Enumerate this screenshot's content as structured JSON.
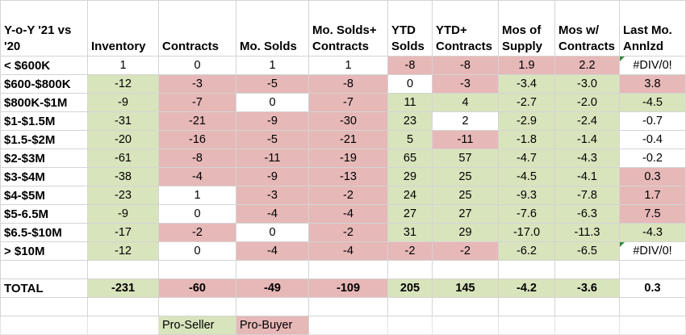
{
  "headers": [
    "Y-o-Y '21 vs '20",
    "Inventory",
    "Contracts",
    "Mo. Solds",
    "Mo. Solds+ Contracts",
    "YTD Solds",
    "YTD+ Contracts",
    "Mos of Supply",
    "Mos w/ Contracts",
    "Last Mo. Annlzd"
  ],
  "colors": {
    "pro_seller": "#d8e4bc",
    "pro_buyer": "#e6b8b7",
    "neutral": "#ffffff"
  },
  "rows": [
    {
      "label": "< $600K",
      "cells": [
        {
          "v": "1",
          "c": "white"
        },
        {
          "v": "0",
          "c": "white"
        },
        {
          "v": "1",
          "c": "white"
        },
        {
          "v": "1",
          "c": "white"
        },
        {
          "v": "-8",
          "c": "red"
        },
        {
          "v": "-8",
          "c": "red"
        },
        {
          "v": "1.9",
          "c": "red"
        },
        {
          "v": "2.2",
          "c": "red"
        },
        {
          "v": "#DIV/0!",
          "c": "white",
          "flag": true
        }
      ]
    },
    {
      "label": "$600-$800K",
      "cells": [
        {
          "v": "-12",
          "c": "green"
        },
        {
          "v": "-3",
          "c": "red"
        },
        {
          "v": "-5",
          "c": "red"
        },
        {
          "v": "-8",
          "c": "red"
        },
        {
          "v": "0",
          "c": "white"
        },
        {
          "v": "-3",
          "c": "red"
        },
        {
          "v": "-3.4",
          "c": "green"
        },
        {
          "v": "-3.0",
          "c": "green"
        },
        {
          "v": "3.8",
          "c": "red"
        }
      ]
    },
    {
      "label": "$800K-$1M",
      "cells": [
        {
          "v": "-9",
          "c": "green"
        },
        {
          "v": "-7",
          "c": "red"
        },
        {
          "v": "0",
          "c": "white"
        },
        {
          "v": "-7",
          "c": "red"
        },
        {
          "v": "11",
          "c": "green"
        },
        {
          "v": "4",
          "c": "green"
        },
        {
          "v": "-2.7",
          "c": "green"
        },
        {
          "v": "-2.0",
          "c": "green"
        },
        {
          "v": "-4.5",
          "c": "green"
        }
      ]
    },
    {
      "label": "$1-$1.5M",
      "cells": [
        {
          "v": "-31",
          "c": "green"
        },
        {
          "v": "-21",
          "c": "red"
        },
        {
          "v": "-9",
          "c": "red"
        },
        {
          "v": "-30",
          "c": "red"
        },
        {
          "v": "23",
          "c": "green"
        },
        {
          "v": "2",
          "c": "white"
        },
        {
          "v": "-2.9",
          "c": "green"
        },
        {
          "v": "-2.4",
          "c": "green"
        },
        {
          "v": "-0.7",
          "c": "white"
        }
      ]
    },
    {
      "label": "$1.5-$2M",
      "cells": [
        {
          "v": "-20",
          "c": "green"
        },
        {
          "v": "-16",
          "c": "red"
        },
        {
          "v": "-5",
          "c": "red"
        },
        {
          "v": "-21",
          "c": "red"
        },
        {
          "v": "5",
          "c": "green"
        },
        {
          "v": "-11",
          "c": "red"
        },
        {
          "v": "-1.8",
          "c": "green"
        },
        {
          "v": "-1.4",
          "c": "green"
        },
        {
          "v": "-0.4",
          "c": "white"
        }
      ]
    },
    {
      "label": "$2-$3M",
      "cells": [
        {
          "v": "-61",
          "c": "green"
        },
        {
          "v": "-8",
          "c": "red"
        },
        {
          "v": "-11",
          "c": "red"
        },
        {
          "v": "-19",
          "c": "red"
        },
        {
          "v": "65",
          "c": "green"
        },
        {
          "v": "57",
          "c": "green"
        },
        {
          "v": "-4.7",
          "c": "green"
        },
        {
          "v": "-4.3",
          "c": "green"
        },
        {
          "v": "-0.2",
          "c": "white"
        }
      ]
    },
    {
      "label": "$3-$4M",
      "cells": [
        {
          "v": "-38",
          "c": "green"
        },
        {
          "v": "-4",
          "c": "red"
        },
        {
          "v": "-9",
          "c": "red"
        },
        {
          "v": "-13",
          "c": "red"
        },
        {
          "v": "29",
          "c": "green"
        },
        {
          "v": "25",
          "c": "green"
        },
        {
          "v": "-4.5",
          "c": "green"
        },
        {
          "v": "-4.1",
          "c": "green"
        },
        {
          "v": "0.3",
          "c": "red"
        }
      ]
    },
    {
      "label": "$4-$5M",
      "cells": [
        {
          "v": "-23",
          "c": "green"
        },
        {
          "v": "1",
          "c": "white"
        },
        {
          "v": "-3",
          "c": "red"
        },
        {
          "v": "-2",
          "c": "red"
        },
        {
          "v": "24",
          "c": "green"
        },
        {
          "v": "25",
          "c": "green"
        },
        {
          "v": "-9.3",
          "c": "green"
        },
        {
          "v": "-7.8",
          "c": "green"
        },
        {
          "v": "1.7",
          "c": "red"
        }
      ]
    },
    {
      "label": "$5-6.5M",
      "cells": [
        {
          "v": "-9",
          "c": "green"
        },
        {
          "v": "0",
          "c": "white"
        },
        {
          "v": "-4",
          "c": "red"
        },
        {
          "v": "-4",
          "c": "red"
        },
        {
          "v": "27",
          "c": "green"
        },
        {
          "v": "27",
          "c": "green"
        },
        {
          "v": "-7.6",
          "c": "green"
        },
        {
          "v": "-6.3",
          "c": "green"
        },
        {
          "v": "7.5",
          "c": "red"
        }
      ]
    },
    {
      "label": "$6.5-$10M",
      "cells": [
        {
          "v": "-17",
          "c": "green"
        },
        {
          "v": "-2",
          "c": "red"
        },
        {
          "v": "0",
          "c": "white"
        },
        {
          "v": "-2",
          "c": "red"
        },
        {
          "v": "31",
          "c": "green"
        },
        {
          "v": "29",
          "c": "green"
        },
        {
          "v": "-17.0",
          "c": "green"
        },
        {
          "v": "-11.3",
          "c": "green"
        },
        {
          "v": "-4.3",
          "c": "green"
        }
      ]
    },
    {
      "label": "> $10M",
      "cells": [
        {
          "v": "-12",
          "c": "green"
        },
        {
          "v": "0",
          "c": "white"
        },
        {
          "v": "-4",
          "c": "red"
        },
        {
          "v": "-4",
          "c": "red"
        },
        {
          "v": "-2",
          "c": "red"
        },
        {
          "v": "-2",
          "c": "red"
        },
        {
          "v": "-6.2",
          "c": "green"
        },
        {
          "v": "-6.5",
          "c": "green"
        },
        {
          "v": "#DIV/0!",
          "c": "white",
          "flag": true
        }
      ]
    }
  ],
  "total": {
    "label": "TOTAL",
    "cells": [
      {
        "v": "-231",
        "c": "green"
      },
      {
        "v": "-60",
        "c": "red"
      },
      {
        "v": "-49",
        "c": "red"
      },
      {
        "v": "-109",
        "c": "red"
      },
      {
        "v": "205",
        "c": "green"
      },
      {
        "v": "145",
        "c": "green"
      },
      {
        "v": "-4.2",
        "c": "green"
      },
      {
        "v": "-3.6",
        "c": "green"
      },
      {
        "v": "0.3",
        "c": "white"
      }
    ]
  },
  "legend": {
    "pro_seller": "Pro-Seller",
    "pro_buyer": "Pro-Buyer"
  }
}
